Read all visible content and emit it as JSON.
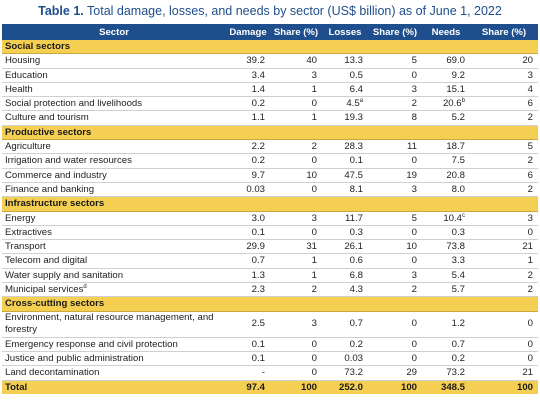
{
  "title": {
    "label": "Table 1.",
    "text": "Total damage, losses, and needs by sector (US$ billion) as of June 1, 2022"
  },
  "headers": [
    "Sector",
    "Damage",
    "Share (%)",
    "Losses",
    "Share (%)",
    "Needs",
    "Share (%)"
  ],
  "sections": [
    {
      "name": "Social sectors",
      "rows": [
        {
          "sector": "Housing",
          "damage": "39.2",
          "dshare": "40",
          "losses": "13.3",
          "lshare": "5",
          "needs": "69.0",
          "nshare": "20"
        },
        {
          "sector": "Education",
          "damage": "3.4",
          "dshare": "3",
          "losses": "0.5",
          "lshare": "0",
          "needs": "9.2",
          "nshare": "3"
        },
        {
          "sector": "Health",
          "damage": "1.4",
          "dshare": "1",
          "losses": "6.4",
          "lshare": "3",
          "needs": "15.1",
          "nshare": "4"
        },
        {
          "sector": "Social protection and livelihoods",
          "damage": "0.2",
          "dshare": "0",
          "losses": "4.5",
          "losses_sup": "a",
          "lshare": "2",
          "needs": "20.6",
          "needs_sup": "b",
          "nshare": "6"
        },
        {
          "sector": "Culture and tourism",
          "damage": "1.1",
          "dshare": "1",
          "losses": "19.3",
          "lshare": "8",
          "needs": "5.2",
          "nshare": "2"
        }
      ]
    },
    {
      "name": "Productive sectors",
      "rows": [
        {
          "sector": "Agriculture",
          "damage": "2.2",
          "dshare": "2",
          "losses": "28.3",
          "lshare": "11",
          "needs": "18.7",
          "nshare": "5"
        },
        {
          "sector": "Irrigation and water resources",
          "damage": "0.2",
          "dshare": "0",
          "losses": "0.1",
          "lshare": "0",
          "needs": "7.5",
          "nshare": "2"
        },
        {
          "sector": "Commerce and industry",
          "damage": "9.7",
          "dshare": "10",
          "losses": "47.5",
          "lshare": "19",
          "needs": "20.8",
          "nshare": "6"
        },
        {
          "sector": "Finance and banking",
          "damage": "0.03",
          "dshare": "0",
          "losses": "8.1",
          "lshare": "3",
          "needs": "8.0",
          "nshare": "2"
        }
      ]
    },
    {
      "name": "Infrastructure sectors",
      "rows": [
        {
          "sector": "Energy",
          "damage": "3.0",
          "dshare": "3",
          "losses": "11.7",
          "lshare": "5",
          "needs": "10.4",
          "needs_sup": "c",
          "nshare": "3"
        },
        {
          "sector": "Extractives",
          "damage": "0.1",
          "dshare": "0",
          "losses": "0.3",
          "lshare": "0",
          "needs": "0.3",
          "nshare": "0"
        },
        {
          "sector": "Transport",
          "damage": "29.9",
          "dshare": "31",
          "losses": "26.1",
          "lshare": "10",
          "needs": "73.8",
          "nshare": "21"
        },
        {
          "sector": "Telecom and digital",
          "damage": "0.7",
          "dshare": "1",
          "losses": "0.6",
          "lshare": "0",
          "needs": "3.3",
          "nshare": "1"
        },
        {
          "sector": "Water supply and sanitation",
          "damage": "1.3",
          "dshare": "1",
          "losses": "6.8",
          "lshare": "3",
          "needs": "5.4",
          "nshare": "2"
        },
        {
          "sector": "Municipal services",
          "sector_sup": "d",
          "damage": "2.3",
          "dshare": "2",
          "losses": "4.3",
          "lshare": "2",
          "needs": "5.7",
          "nshare": "2"
        }
      ]
    },
    {
      "name": "Cross-cutting sectors",
      "rows": [
        {
          "sector": "Environment, natural resource management, and forestry",
          "tall": true,
          "damage": "2.5",
          "dshare": "3",
          "losses": "0.7",
          "lshare": "0",
          "needs": "1.2",
          "nshare": "0"
        },
        {
          "sector": "Emergency response and civil protection",
          "damage": "0.1",
          "dshare": "0",
          "losses": "0.2",
          "lshare": "0",
          "needs": "0.7",
          "nshare": "0"
        },
        {
          "sector": "Justice and public administration",
          "damage": "0.1",
          "dshare": "0",
          "losses": "0.03",
          "lshare": "0",
          "needs": "0.2",
          "nshare": "0"
        },
        {
          "sector": "Land decontamination",
          "damage": "-",
          "dshare": "0",
          "losses": "73.2",
          "lshare": "29",
          "needs": "73.2",
          "nshare": "21"
        }
      ]
    }
  ],
  "total": {
    "sector": "Total",
    "damage": "97.4",
    "dshare": "100",
    "losses": "252.0",
    "lshare": "100",
    "needs": "348.5",
    "nshare": "100"
  },
  "colors": {
    "header_bg": "#1f4e8c",
    "section_bg": "#f5cf52",
    "title_color": "#1f4e8c"
  }
}
